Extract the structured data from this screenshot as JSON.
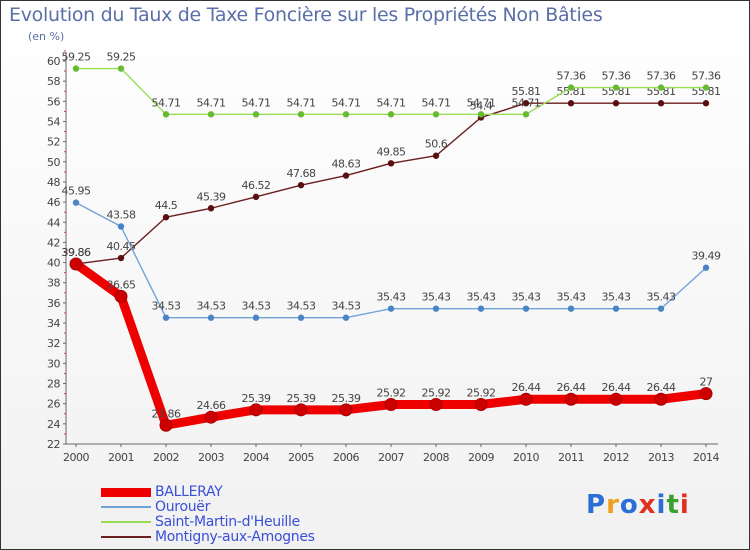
{
  "chart_data": {
    "type": "line",
    "title": "Evolution du Taux de Taxe Foncière sur les Propriétés Non Bâties",
    "ylabel": "(en %)",
    "xlabel": "",
    "ylim": [
      22,
      60
    ],
    "ytick_step": 2,
    "grid": false,
    "categories": [
      "2000",
      "2001",
      "2002",
      "2003",
      "2004",
      "2005",
      "2006",
      "2007",
      "2008",
      "2009",
      "2010",
      "2011",
      "2012",
      "2013",
      "2014"
    ],
    "series": [
      {
        "name": "Montigny-aux-Amognes",
        "color": "#6b1e1e",
        "marker": "#5a1010",
        "values": [
          39.86,
          40.45,
          44.5,
          45.39,
          46.52,
          47.68,
          48.63,
          49.85,
          50.6,
          54.4,
          55.81,
          55.81,
          55.81,
          55.81,
          55.81
        ],
        "labels": [
          "39.86",
          "40.45",
          "44.5",
          "45.39",
          "46.52",
          "47.68",
          "48.63",
          "49.85",
          "50.6",
          "54.4",
          "55.81",
          "55.81",
          "55.81",
          "55.81",
          "55.81"
        ]
      },
      {
        "name": "Saint-Martin-d'Heuille",
        "color": "#99dd55",
        "marker": "#66bb33",
        "values": [
          59.25,
          59.25,
          54.71,
          54.71,
          54.71,
          54.71,
          54.71,
          54.71,
          54.71,
          54.71,
          54.71,
          57.36,
          57.36,
          57.36,
          57.36
        ],
        "labels": [
          "59.25",
          "59.25",
          "54.71",
          "54.71",
          "54.71",
          "54.71",
          "54.71",
          "54.71",
          "54.71",
          "54.71",
          "54.71",
          "57.36",
          "57.36",
          "57.36",
          "57.36"
        ]
      },
      {
        "name": "Ourouër",
        "color": "#6fa3d8",
        "marker": "#4a84c4",
        "values": [
          45.95,
          43.58,
          34.53,
          34.53,
          34.53,
          34.53,
          34.53,
          35.43,
          35.43,
          35.43,
          35.43,
          35.43,
          35.43,
          35.43,
          39.49
        ],
        "labels": [
          "45.95",
          "43.58",
          "34.53",
          "34.53",
          "34.53",
          "34.53",
          "34.53",
          "35.43",
          "35.43",
          "35.43",
          "35.43",
          "35.43",
          "35.43",
          "35.43",
          "39.49"
        ]
      },
      {
        "name": "BALLERAY",
        "color": "#ee0000",
        "marker": "#cc0000",
        "values": [
          39.86,
          36.65,
          23.86,
          24.66,
          25.39,
          25.39,
          25.39,
          25.92,
          25.92,
          25.92,
          26.44,
          26.44,
          26.44,
          26.44,
          27
        ],
        "labels": [
          "39.86",
          "36.65",
          "23.86",
          "24.66",
          "25.39",
          "25.39",
          "25.39",
          "25.92",
          "25.92",
          "25.92",
          "26.44",
          "26.44",
          "26.44",
          "26.44",
          "27"
        ]
      }
    ],
    "legend_order": [
      "BALLERAY",
      "Ourouër",
      "Saint-Martin-d'Heuille",
      "Montigny-aux-Amognes"
    ]
  },
  "logo": {
    "letters": [
      "P",
      "r",
      "o",
      "x",
      "i",
      "t",
      "i"
    ],
    "colors": [
      "#2b6fd6",
      "#f0a020",
      "#2b6fd6",
      "#e03020",
      "#2b6fd6",
      "#3aa030",
      "#e03020"
    ]
  }
}
